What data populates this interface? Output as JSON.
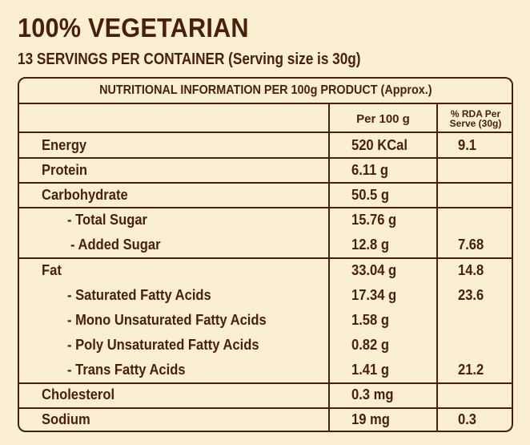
{
  "title": "100% VEGETARIAN",
  "subtitle": "13 SERVINGS PER CONTAINER (Serving size is 30g)",
  "table": {
    "heading": "NUTRITIONAL INFORMATION PER 100g PRODUCT (Approx.)",
    "col_per100": "Per 100 g",
    "col_rda_line1": "% RDA Per",
    "col_rda_line2": "Serve (30g)",
    "rows": [
      {
        "label": "Energy",
        "per100": "520 KCal",
        "rda": "9.1"
      },
      {
        "label": "Protein",
        "per100": "6.11 g",
        "rda": ""
      },
      {
        "label": "Carbohydrate",
        "per100": "50.5 g",
        "rda": ""
      },
      {
        "label": "- Total Sugar",
        "per100": "15.76 g",
        "rda": ""
      },
      {
        "label": "- Added Sugar",
        "per100": "12.8 g",
        "rda": "7.68"
      },
      {
        "label": "Fat",
        "per100": "33.04 g",
        "rda": "14.8"
      },
      {
        "label": "- Saturated Fatty Acids",
        "per100": "17.34 g",
        "rda": "23.6"
      },
      {
        "label": "- Mono Unsaturated Fatty Acids",
        "per100": "1.58 g",
        "rda": ""
      },
      {
        "label": "- Poly Unsaturated Fatty Acids",
        "per100": "0.82 g",
        "rda": ""
      },
      {
        "label": "- Trans Fatty Acids",
        "per100": "1.41 g",
        "rda": "21.2"
      },
      {
        "label": "Cholesterol",
        "per100": "0.3 mg",
        "rda": ""
      },
      {
        "label": "Sodium",
        "per100": "19 mg",
        "rda": "0.3"
      }
    ]
  }
}
